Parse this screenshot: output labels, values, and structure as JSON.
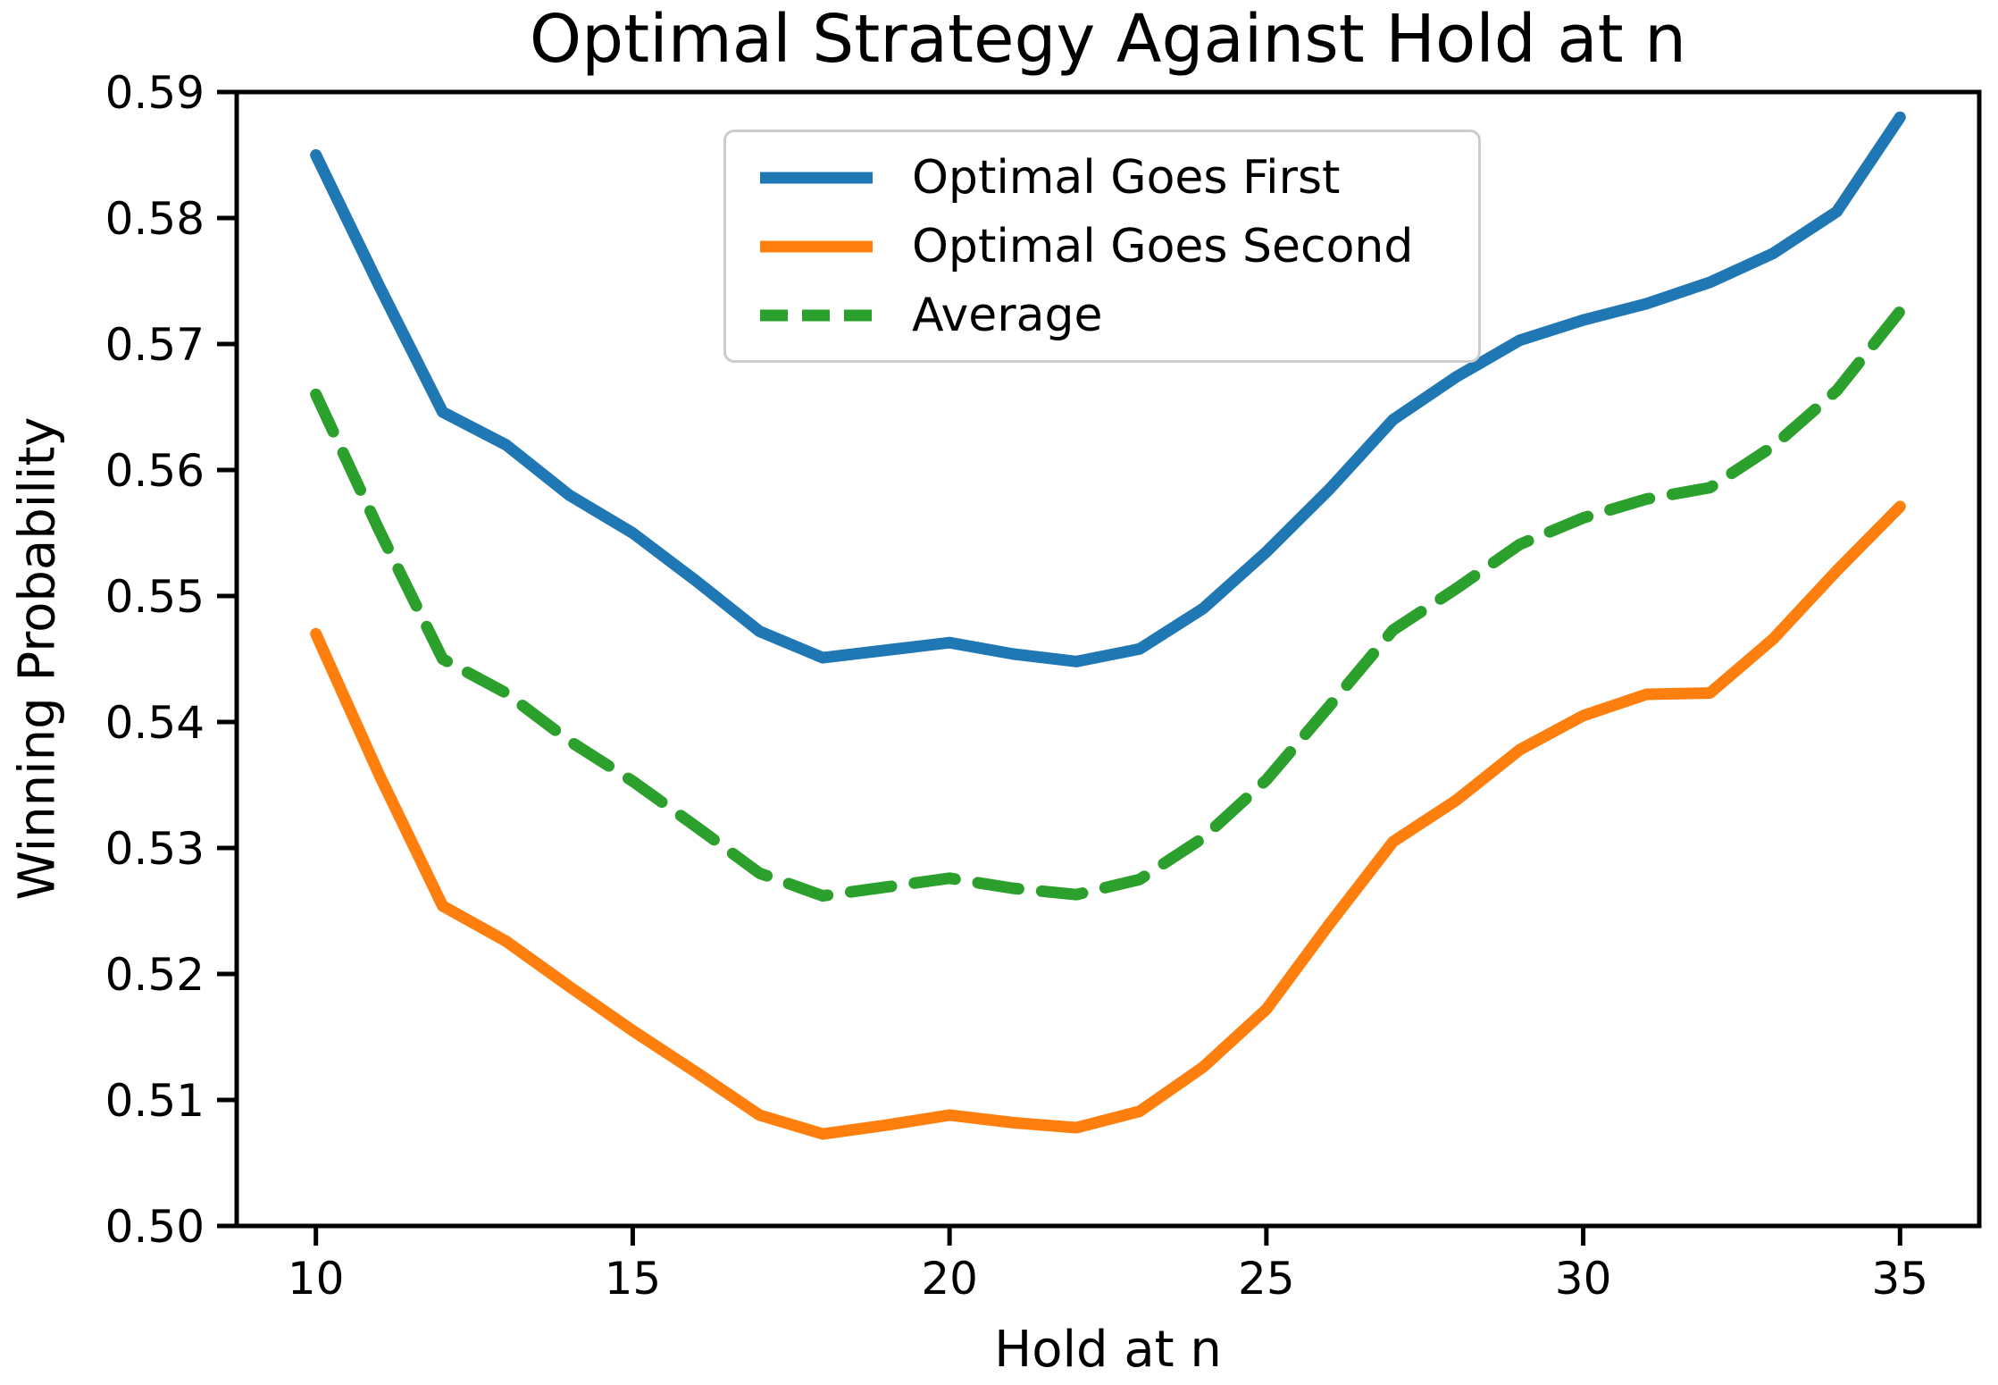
{
  "figure": {
    "background": "#ffffff",
    "text_color": "#000000",
    "spine_color": "#000000"
  },
  "chart_data": {
    "type": "line",
    "title": "Optimal Strategy Against Hold at n",
    "xlabel": "Hold at n",
    "ylabel": "Winning Probability",
    "x": [
      10,
      11,
      12,
      13,
      14,
      15,
      16,
      17,
      18,
      19,
      20,
      21,
      22,
      23,
      24,
      25,
      26,
      27,
      28,
      29,
      30,
      31,
      32,
      33,
      34,
      35
    ],
    "series": [
      {
        "name": "Optimal Goes First",
        "color": "#1f77b4",
        "style": "solid",
        "values": [
          0.585,
          0.5746,
          0.5646,
          0.562,
          0.558,
          0.555,
          0.5512,
          0.5472,
          0.5451,
          0.5457,
          0.5463,
          0.5454,
          0.5448,
          0.5458,
          0.549,
          0.5535,
          0.5585,
          0.564,
          0.5674,
          0.5703,
          0.5719,
          0.5732,
          0.5749,
          0.5772,
          0.5805,
          0.588
        ]
      },
      {
        "name": "Optimal Goes Second",
        "color": "#ff7f0e",
        "style": "solid",
        "values": [
          0.547,
          0.5358,
          0.5254,
          0.5226,
          0.519,
          0.5155,
          0.5122,
          0.5088,
          0.5073,
          0.508,
          0.5088,
          0.5082,
          0.5078,
          0.5091,
          0.5126,
          0.5172,
          0.524,
          0.5305,
          0.5338,
          0.5378,
          0.5405,
          0.5422,
          0.5423,
          0.5466,
          0.552,
          0.5571
        ]
      },
      {
        "name": "Average",
        "color": "#2ca02c",
        "style": "dashed",
        "values": [
          0.566,
          0.5552,
          0.545,
          0.5423,
          0.5385,
          0.5353,
          0.5317,
          0.528,
          0.5262,
          0.5269,
          0.5276,
          0.5268,
          0.5263,
          0.5275,
          0.5308,
          0.5354,
          0.5413,
          0.5473,
          0.5506,
          0.5541,
          0.5562,
          0.5577,
          0.5586,
          0.5619,
          0.5663,
          0.5726
        ]
      }
    ],
    "xlim": [
      8.75,
      36.25
    ],
    "ylim": [
      0.5,
      0.59
    ],
    "x_ticks": [
      "10",
      "15",
      "20",
      "25",
      "30",
      "35"
    ],
    "y_ticks": [
      "0.50",
      "0.51",
      "0.52",
      "0.53",
      "0.54",
      "0.55",
      "0.56",
      "0.57",
      "0.58",
      "0.59"
    ],
    "grid": false,
    "legend_position": "upper center",
    "line_width": 13
  }
}
